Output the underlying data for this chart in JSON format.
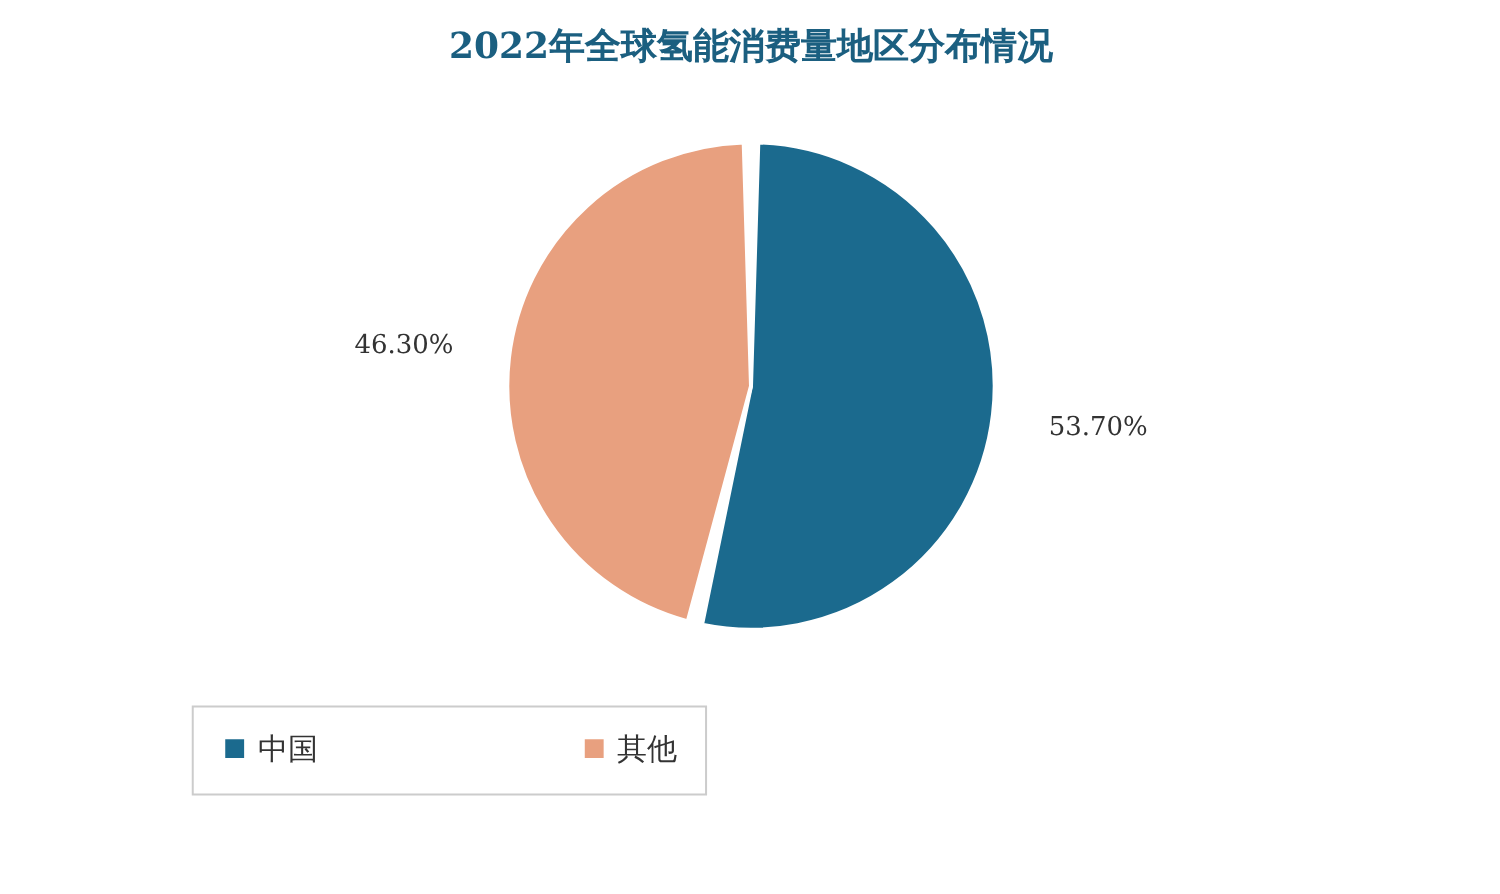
{
  "chart_data": {
    "type": "pie",
    "title": "2022年全球氢能消费量地区分布情况",
    "categories": [
      "中国",
      "其他"
    ],
    "values": [
      53.7,
      46.3
    ],
    "colors": [
      "#1b6a8e",
      "#e8a07f"
    ],
    "value_labels": [
      "53.70%",
      "46.30%"
    ],
    "legend": "bottom"
  }
}
